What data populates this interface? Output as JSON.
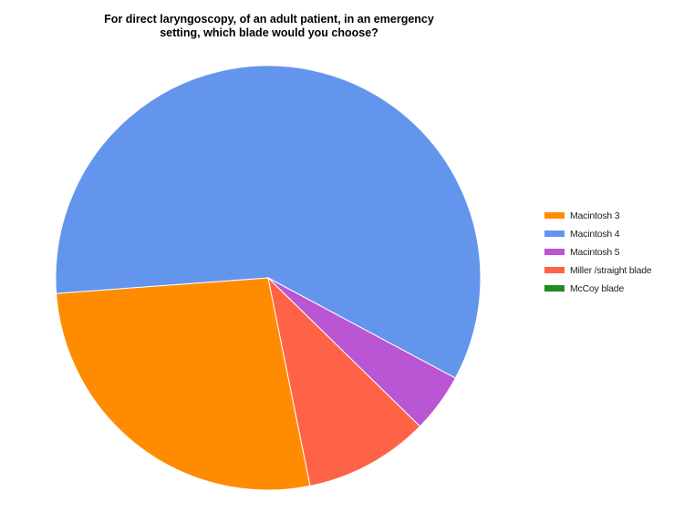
{
  "chart_data": {
    "type": "pie",
    "title_lines": [
      "For direct laryngoscopy, of an adult patient, in an emergency",
      "setting, which blade would you choose?"
    ],
    "legend_position": "right",
    "slices": [
      {
        "label": "Macintosh 3",
        "value": 27,
        "color": "#ff8c00"
      },
      {
        "label": "Macintosh 4",
        "value": 59,
        "color": "#6495ed"
      },
      {
        "label": "Macintosh 5",
        "value": 4.5,
        "color": "#ba55d3"
      },
      {
        "label": "Miller /straight blade",
        "value": 9.5,
        "color": "#ff6347"
      },
      {
        "label": "McCoy blade",
        "value": 0,
        "color": "#228b22"
      }
    ]
  }
}
